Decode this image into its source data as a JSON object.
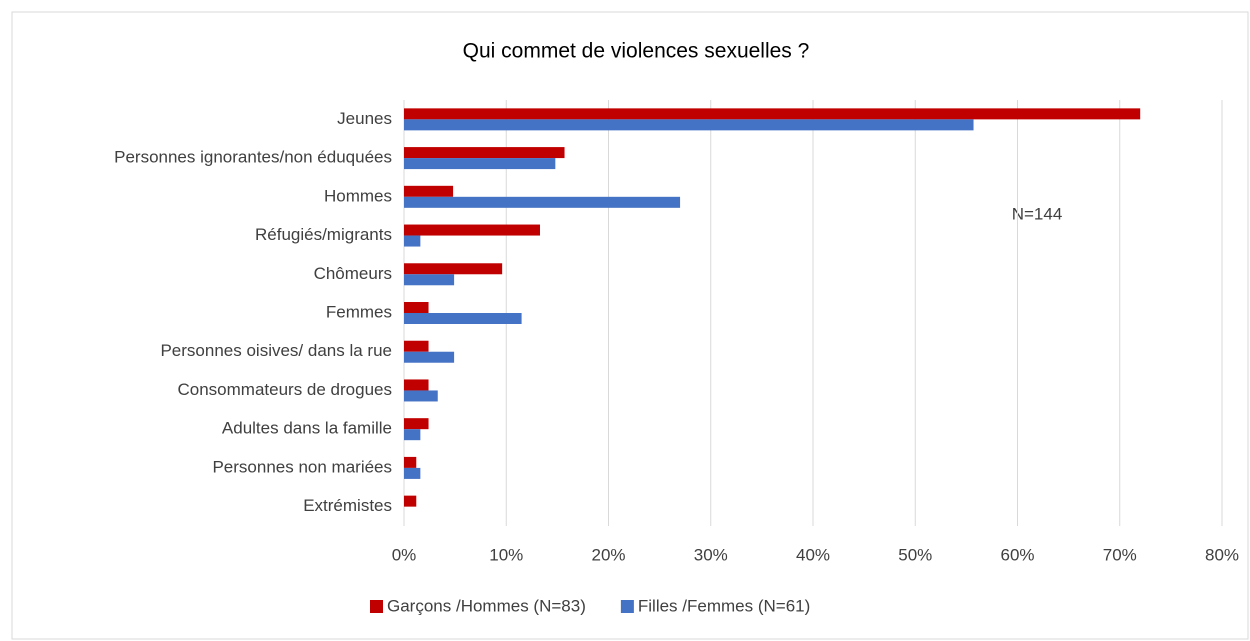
{
  "chart_data": {
    "type": "hbar",
    "title": "Qui commet de violences sexuelles ?",
    "categories": [
      "Jeunes",
      "Personnes ignorantes/non éduquées",
      "Hommes",
      "Réfugiés/migrants",
      "Chômeurs",
      "Femmes",
      "Personnes oisives/ dans la rue",
      "Consommateurs de drogues",
      "Adultes dans la famille",
      "Personnes non mariées",
      "Extrémistes"
    ],
    "series": [
      {
        "name": "Garçons /Hommes (N=83)",
        "color": "#c00000",
        "values": [
          72,
          15.7,
          4.8,
          13.3,
          9.6,
          2.4,
          2.4,
          2.4,
          2.4,
          1.2,
          1.2
        ]
      },
      {
        "name": "Filles /Femmes (N=61)",
        "color": "#4472c4",
        "values": [
          55.7,
          14.8,
          27,
          1.6,
          4.9,
          11.5,
          4.9,
          3.3,
          1.6,
          1.6,
          0
        ]
      }
    ],
    "xlim": [
      0,
      80
    ],
    "xticks": [
      {
        "value": 0,
        "label": "0%"
      },
      {
        "value": 10,
        "label": "10%"
      },
      {
        "value": 20,
        "label": "20%"
      },
      {
        "value": 30,
        "label": "30%"
      },
      {
        "value": 40,
        "label": "40%"
      },
      {
        "value": 50,
        "label": "50%"
      },
      {
        "value": 60,
        "label": "60%"
      },
      {
        "value": 70,
        "label": "70%"
      },
      {
        "value": 80,
        "label": "80%"
      }
    ],
    "grid": true,
    "annotation": "N=144",
    "legend": "bottom"
  }
}
